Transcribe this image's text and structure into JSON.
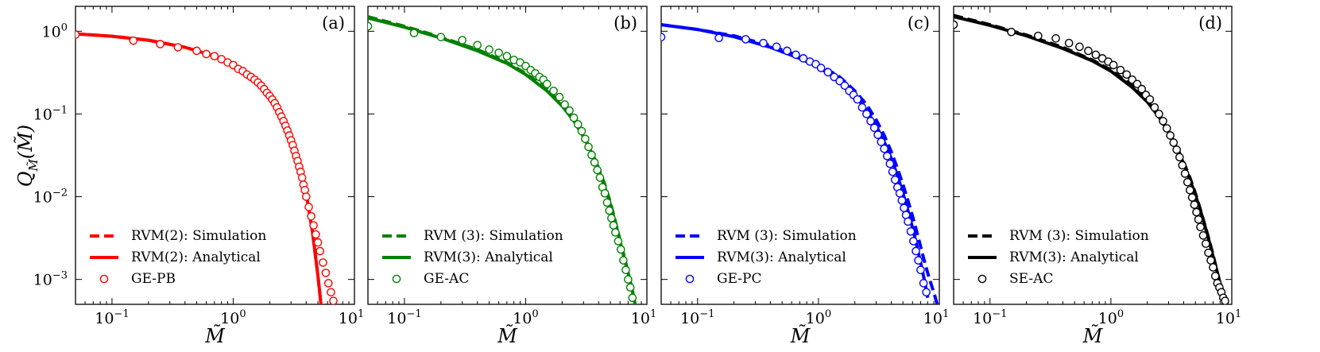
{
  "figure": {
    "ylabel_main": "Q",
    "ylabel_sub": "M̃",
    "ylabel_arg": "M̃"
  },
  "chart_data": [
    {
      "type": "scatter",
      "panel_label": "(a)",
      "color": "#ff0000",
      "xlabel": "M̃",
      "ylabel": "Q_M̃(M̃)",
      "xscale": "log",
      "yscale": "log",
      "xlim": [
        0.05,
        10
      ],
      "ylim": [
        0.0005,
        2
      ],
      "xticks": [
        {
          "value": 0.1,
          "base": "10",
          "exp": "−1"
        },
        {
          "value": 1,
          "base": "10",
          "exp": "0"
        },
        {
          "value": 10,
          "base": "10",
          "exp": "1"
        }
      ],
      "yticks": [
        {
          "value": 1,
          "base": "10",
          "exp": "0"
        },
        {
          "value": 0.1,
          "base": "10",
          "exp": "−1"
        },
        {
          "value": 0.01,
          "base": "10",
          "exp": "−2"
        },
        {
          "value": 0.001,
          "base": "10",
          "exp": "−3"
        }
      ],
      "legend": {
        "position": "lower-left",
        "entries": [
          "RVM(2): Simulation",
          "RVM(2): Analytical",
          "GE-PB"
        ]
      },
      "series": [
        {
          "name": "RVM(2): Simulation",
          "kind": "line",
          "style": "dashed",
          "x": [
            0.05,
            0.1,
            0.2,
            0.4,
            0.7,
            1.0,
            1.5,
            2.0,
            2.5,
            3.0,
            3.5,
            4.0,
            4.5,
            5.0,
            5.3
          ],
          "y": [
            0.93,
            0.87,
            0.78,
            0.64,
            0.5,
            0.4,
            0.27,
            0.17,
            0.1,
            0.055,
            0.027,
            0.011,
            0.0038,
            0.0011,
            0.0005
          ]
        },
        {
          "name": "RVM(2): Analytical",
          "kind": "line",
          "style": "solid",
          "x": [
            0.05,
            0.1,
            0.2,
            0.4,
            0.7,
            1.0,
            1.5,
            2.0,
            2.5,
            3.0,
            3.5,
            4.0,
            4.5,
            5.0,
            5.3
          ],
          "y": [
            0.93,
            0.87,
            0.78,
            0.64,
            0.5,
            0.4,
            0.27,
            0.17,
            0.1,
            0.055,
            0.027,
            0.011,
            0.0038,
            0.0011,
            0.0005
          ]
        },
        {
          "name": "GE-PB",
          "kind": "markers",
          "x": [
            0.05,
            0.15,
            0.25,
            0.35,
            0.5,
            0.6,
            0.7,
            0.8,
            0.9,
            1.0,
            1.1,
            1.2,
            1.3,
            1.4,
            1.5,
            1.6,
            1.7,
            1.8,
            1.9,
            2.0,
            2.1,
            2.2,
            2.3,
            2.4,
            2.5,
            2.6,
            2.7,
            2.8,
            2.9,
            3.0,
            3.1,
            3.2,
            3.3,
            3.4,
            3.5,
            3.6,
            3.7,
            3.8,
            3.9,
            4.0,
            4.2,
            4.4,
            4.6,
            4.8,
            5.0,
            5.2,
            5.5,
            5.8,
            6.1,
            6.4,
            6.7
          ],
          "y": [
            0.91,
            0.77,
            0.7,
            0.64,
            0.58,
            0.53,
            0.5,
            0.46,
            0.42,
            0.39,
            0.35,
            0.33,
            0.3,
            0.28,
            0.26,
            0.24,
            0.22,
            0.2,
            0.18,
            0.165,
            0.15,
            0.135,
            0.12,
            0.105,
            0.093,
            0.082,
            0.072,
            0.063,
            0.055,
            0.048,
            0.042,
            0.036,
            0.031,
            0.027,
            0.023,
            0.02,
            0.017,
            0.014,
            0.012,
            0.01,
            0.0075,
            0.0058,
            0.0045,
            0.0035,
            0.0028,
            0.0022,
            0.0016,
            0.0012,
            0.0009,
            0.0007,
            0.00055
          ]
        }
      ]
    },
    {
      "type": "scatter",
      "panel_label": "(b)",
      "color": "#008000",
      "xlabel": "M̃",
      "xscale": "log",
      "yscale": "log",
      "xlim": [
        0.05,
        10
      ],
      "ylim": [
        0.0005,
        2
      ],
      "xticks": [
        {
          "value": 0.1,
          "base": "10",
          "exp": "−1"
        },
        {
          "value": 1,
          "base": "10",
          "exp": "0"
        },
        {
          "value": 10,
          "base": "10",
          "exp": "1"
        }
      ],
      "legend": {
        "position": "lower-left",
        "entries": [
          "RVM (3): Simulation",
          "RVM(3): Analytical",
          "GE-AC"
        ]
      },
      "series": [
        {
          "name": "RVM (3): Simulation",
          "kind": "line",
          "style": "dashed",
          "x": [
            0.05,
            0.1,
            0.2,
            0.4,
            0.7,
            1.0,
            1.5,
            2.0,
            2.5,
            3.0,
            3.5,
            4.0,
            4.5,
            5.0,
            5.5,
            6.0,
            6.5,
            7.0,
            7.5,
            8.0
          ],
          "y": [
            1.5,
            1.15,
            0.85,
            0.6,
            0.42,
            0.31,
            0.2,
            0.13,
            0.085,
            0.055,
            0.035,
            0.022,
            0.014,
            0.0085,
            0.005,
            0.003,
            0.0019,
            0.0012,
            0.0008,
            0.0005
          ]
        },
        {
          "name": "RVM(3): Analytical",
          "kind": "line",
          "style": "solid",
          "x": [
            0.05,
            0.1,
            0.2,
            0.4,
            0.7,
            1.0,
            1.5,
            2.0,
            2.5,
            3.0,
            3.5,
            4.0,
            4.5,
            5.0,
            5.5,
            6.0,
            6.5,
            7.0,
            7.5,
            8.0
          ],
          "y": [
            1.45,
            1.12,
            0.83,
            0.58,
            0.41,
            0.3,
            0.19,
            0.125,
            0.082,
            0.053,
            0.034,
            0.021,
            0.013,
            0.008,
            0.0048,
            0.0029,
            0.0018,
            0.0012,
            0.0008,
            0.0005
          ]
        },
        {
          "name": "GE-AC",
          "kind": "markers",
          "x": [
            0.05,
            0.12,
            0.2,
            0.3,
            0.4,
            0.5,
            0.6,
            0.7,
            0.8,
            0.9,
            1.0,
            1.1,
            1.2,
            1.3,
            1.4,
            1.5,
            1.7,
            1.9,
            2.1,
            2.3,
            2.5,
            2.7,
            2.9,
            3.1,
            3.3,
            3.5,
            3.7,
            3.9,
            4.1,
            4.3,
            4.5,
            4.7,
            4.9,
            5.1,
            5.3,
            5.5,
            5.8,
            6.1,
            6.4,
            6.7,
            7.0,
            7.3,
            7.6
          ],
          "y": [
            1.15,
            0.95,
            0.85,
            0.78,
            0.68,
            0.6,
            0.55,
            0.5,
            0.45,
            0.42,
            0.38,
            0.34,
            0.31,
            0.28,
            0.26,
            0.23,
            0.19,
            0.16,
            0.13,
            0.11,
            0.09,
            0.075,
            0.062,
            0.05,
            0.04,
            0.032,
            0.026,
            0.021,
            0.017,
            0.013,
            0.011,
            0.0085,
            0.0068,
            0.0055,
            0.0045,
            0.0037,
            0.0029,
            0.0023,
            0.0017,
            0.0013,
            0.001,
            0.0008,
            0.0006
          ]
        }
      ]
    },
    {
      "type": "scatter",
      "panel_label": "(c)",
      "color": "#0000ff",
      "xlabel": "M̃",
      "xscale": "log",
      "yscale": "log",
      "xlim": [
        0.05,
        10
      ],
      "ylim": [
        0.0005,
        2
      ],
      "xticks": [
        {
          "value": 0.1,
          "base": "10",
          "exp": "−1"
        },
        {
          "value": 1,
          "base": "10",
          "exp": "0"
        },
        {
          "value": 10,
          "base": "10",
          "exp": "1"
        }
      ],
      "legend": {
        "position": "lower-left",
        "entries": [
          "RVM (3): Simulation",
          "RVM(3): Analytical",
          "GE-PC"
        ]
      },
      "series": [
        {
          "name": "RVM (3): Simulation",
          "kind": "line",
          "style": "dashed",
          "x": [
            0.05,
            0.1,
            0.2,
            0.4,
            0.7,
            1.0,
            1.5,
            2.0,
            2.5,
            3.0,
            3.5,
            4.0,
            4.5,
            5.0,
            5.5,
            6.0,
            6.5,
            7.0,
            7.5,
            8.0,
            8.5,
            9.0,
            9.6
          ],
          "y": [
            1.2,
            1.05,
            0.88,
            0.67,
            0.5,
            0.4,
            0.28,
            0.19,
            0.13,
            0.085,
            0.055,
            0.035,
            0.022,
            0.014,
            0.009,
            0.0058,
            0.0038,
            0.0025,
            0.0017,
            0.0012,
            0.0009,
            0.0007,
            0.0005
          ]
        },
        {
          "name": "RVM(3): Analytical",
          "kind": "line",
          "style": "solid",
          "x": [
            0.05,
            0.1,
            0.2,
            0.4,
            0.7,
            1.0,
            1.5,
            2.0,
            2.5,
            3.0,
            3.5,
            4.0,
            4.5,
            5.0,
            5.5,
            6.0,
            6.5,
            7.0,
            7.5,
            8.0
          ],
          "y": [
            1.2,
            1.05,
            0.86,
            0.64,
            0.47,
            0.37,
            0.25,
            0.17,
            0.11,
            0.072,
            0.046,
            0.029,
            0.018,
            0.011,
            0.0068,
            0.0042,
            0.0026,
            0.0016,
            0.001,
            0.0006
          ]
        },
        {
          "name": "GE-PC",
          "kind": "markers",
          "x": [
            0.05,
            0.15,
            0.25,
            0.35,
            0.45,
            0.55,
            0.65,
            0.75,
            0.85,
            0.95,
            1.05,
            1.2,
            1.35,
            1.5,
            1.65,
            1.8,
            1.95,
            2.1,
            2.3,
            2.5,
            2.7,
            2.9,
            3.1,
            3.3,
            3.5,
            3.7,
            3.9,
            4.1,
            4.3,
            4.5,
            4.7,
            4.9,
            5.1,
            5.3,
            5.5,
            5.8,
            6.1,
            6.4,
            6.7,
            7.0,
            7.4,
            7.8
          ],
          "y": [
            0.85,
            0.83,
            0.8,
            0.72,
            0.65,
            0.58,
            0.52,
            0.47,
            0.43,
            0.4,
            0.36,
            0.32,
            0.28,
            0.25,
            0.22,
            0.19,
            0.17,
            0.15,
            0.12,
            0.1,
            0.082,
            0.068,
            0.056,
            0.046,
            0.038,
            0.031,
            0.025,
            0.02,
            0.016,
            0.013,
            0.011,
            0.009,
            0.0073,
            0.006,
            0.005,
            0.0038,
            0.0029,
            0.0022,
            0.0017,
            0.0013,
            0.0009,
            0.0007
          ]
        }
      ]
    },
    {
      "type": "scatter",
      "panel_label": "(d)",
      "color": "#000000",
      "xlabel": "M̃",
      "xscale": "log",
      "yscale": "log",
      "xlim": [
        0.05,
        10
      ],
      "ylim": [
        0.0005,
        2
      ],
      "xticks": [
        {
          "value": 0.1,
          "base": "10",
          "exp": "−1"
        },
        {
          "value": 1,
          "base": "10",
          "exp": "0"
        },
        {
          "value": 10,
          "base": "10",
          "exp": "1"
        }
      ],
      "legend": {
        "position": "lower-left",
        "entries": [
          "RVM (3): Simulation",
          "RVM(3): Analytical",
          "SE-AC"
        ]
      },
      "series": [
        {
          "name": "RVM (3): Simulation",
          "kind": "line",
          "style": "dashed",
          "x": [
            0.05,
            0.1,
            0.2,
            0.4,
            0.7,
            1.0,
            1.5,
            2.0,
            2.5,
            3.0,
            3.5,
            4.0,
            4.5,
            5.0,
            5.5,
            6.0,
            6.5,
            7.0,
            7.5,
            8.0,
            8.5,
            9.0
          ],
          "y": [
            1.55,
            1.2,
            0.9,
            0.64,
            0.45,
            0.34,
            0.22,
            0.145,
            0.095,
            0.062,
            0.04,
            0.026,
            0.017,
            0.011,
            0.007,
            0.0045,
            0.003,
            0.002,
            0.0013,
            0.0009,
            0.0007,
            0.0005
          ]
        },
        {
          "name": "RVM(3): Analytical",
          "kind": "line",
          "style": "solid",
          "x": [
            0.05,
            0.1,
            0.2,
            0.4,
            0.7,
            1.0,
            1.5,
            2.0,
            2.5,
            3.0,
            3.5,
            4.0,
            4.5,
            5.0,
            5.5,
            6.0,
            6.5,
            7.0,
            7.5,
            8.0,
            8.5,
            9.0
          ],
          "y": [
            1.5,
            1.18,
            0.88,
            0.62,
            0.44,
            0.33,
            0.21,
            0.14,
            0.092,
            0.06,
            0.039,
            0.025,
            0.016,
            0.0105,
            0.0068,
            0.0044,
            0.0029,
            0.0019,
            0.0013,
            0.0009,
            0.0007,
            0.0005
          ]
        },
        {
          "name": "SE-AC",
          "kind": "markers",
          "x": [
            0.05,
            0.15,
            0.25,
            0.35,
            0.45,
            0.55,
            0.65,
            0.75,
            0.85,
            0.95,
            1.05,
            1.2,
            1.35,
            1.5,
            1.65,
            1.8,
            1.95,
            2.1,
            2.3,
            2.5,
            2.7,
            2.9,
            3.1,
            3.3,
            3.5,
            3.7,
            3.9,
            4.1,
            4.3,
            4.5,
            4.7,
            4.9,
            5.1,
            5.3,
            5.5,
            5.8,
            6.1,
            6.4,
            6.7,
            7.0,
            7.3,
            7.6,
            7.9,
            8.2,
            8.5,
            8.8
          ],
          "y": [
            1.2,
            0.98,
            0.88,
            0.82,
            0.72,
            0.65,
            0.58,
            0.52,
            0.47,
            0.43,
            0.39,
            0.34,
            0.3,
            0.26,
            0.23,
            0.2,
            0.17,
            0.15,
            0.12,
            0.1,
            0.082,
            0.067,
            0.055,
            0.045,
            0.037,
            0.03,
            0.024,
            0.019,
            0.015,
            0.012,
            0.0098,
            0.008,
            0.0065,
            0.0053,
            0.0043,
            0.0034,
            0.0027,
            0.0021,
            0.0017,
            0.0014,
            0.0011,
            0.0009,
            0.0008,
            0.0007,
            0.0006,
            0.00055
          ]
        }
      ]
    }
  ]
}
